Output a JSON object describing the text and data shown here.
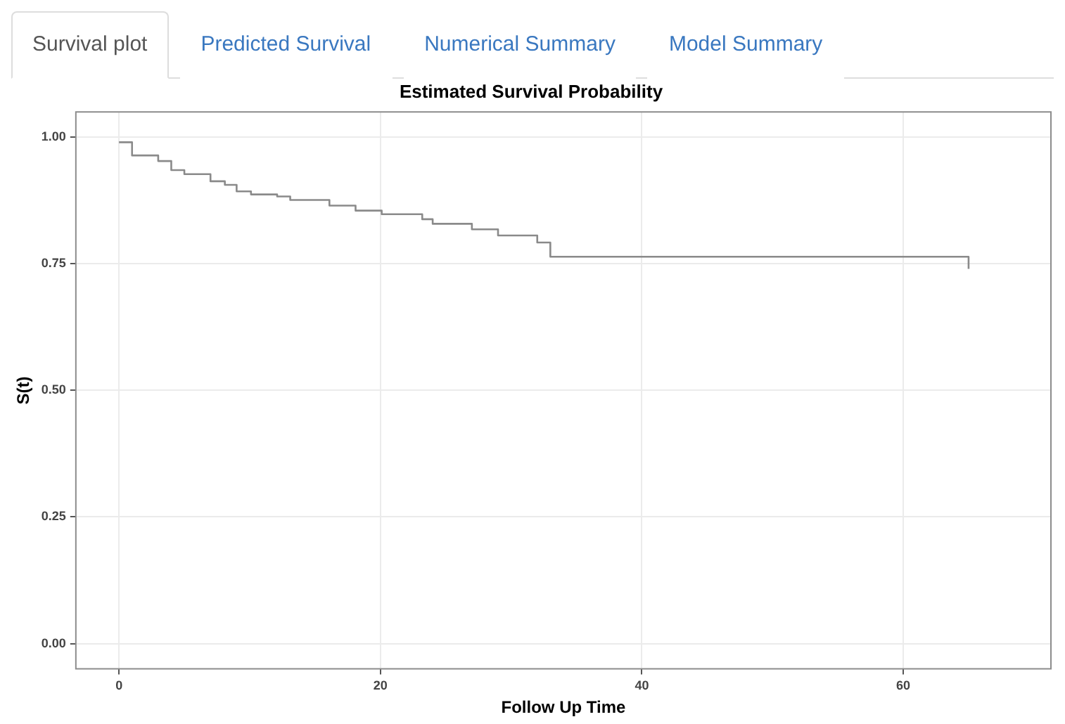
{
  "chart_data": {
    "type": "step",
    "title": "Estimated Survival Probability",
    "xlabel": "Follow Up Time",
    "ylabel": "S(t)",
    "annotations": [
      "Survival plot",
      "Predicted Survival",
      "Numerical Summary",
      "Model Summary"
    ],
    "x": [
      0,
      1,
      3,
      4,
      5,
      7,
      8.1,
      9,
      10.1,
      12.1,
      13.1,
      16.1,
      18.1,
      20.1,
      23.2,
      24,
      27,
      29,
      32,
      33,
      65,
      65
    ],
    "series": [
      {
        "color": "#8a8a8a",
        "values": [
          0.99,
          0.964,
          0.953,
          0.935,
          0.927,
          0.913,
          0.906,
          0.893,
          0.887,
          0.883,
          0.876,
          0.865,
          0.855,
          0.848,
          0.838,
          0.829,
          0.818,
          0.806,
          0.792,
          0.764,
          0.764,
          0.74
        ]
      }
    ],
    "xlim": [
      -3.3,
      71.3
    ],
    "xticks": [
      0,
      20,
      40,
      60
    ],
    "ylim": [
      -0.05,
      1.05
    ],
    "yticks": [
      {
        "value": 0,
        "label": "0.00"
      },
      {
        "value": 0.25,
        "label": "0.25"
      },
      {
        "value": 0.5,
        "label": "0.50"
      },
      {
        "value": 0.75,
        "label": "0.75"
      },
      {
        "value": 1,
        "label": "1.00"
      }
    ],
    "grid": true,
    "legend": false,
    "marker": "none",
    "line_style": "solid"
  }
}
